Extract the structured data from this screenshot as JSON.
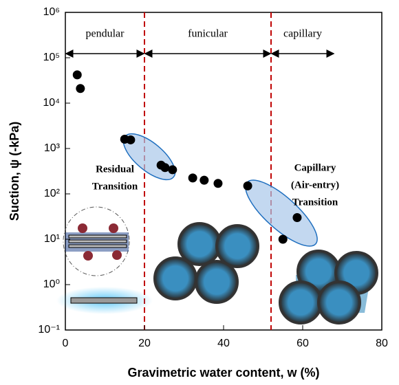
{
  "chart_data": {
    "type": "scatter",
    "xlabel": "Gravimetric water content, w (%)",
    "ylabel": "Suction, ψ (-kPa)",
    "annotations": [
      "Residual",
      "Transition",
      "Capillary",
      "(Air-entry)",
      "Transition"
    ],
    "x": [
      3,
      3.8,
      15,
      16.5,
      24.2,
      25.2,
      27.1,
      32.2,
      35.1,
      38.6,
      46.1,
      55,
      58.6
    ],
    "values": [
      42000,
      21000,
      1600,
      1550,
      430,
      380,
      340,
      224,
      200,
      170,
      150,
      10,
      30
    ],
    "color": "#000000",
    "xlim": [
      0,
      80
    ],
    "xticks": [
      0,
      20,
      40,
      60,
      80
    ],
    "ylim": [
      0.1,
      1000000
    ],
    "yscale": "log",
    "yticks": [
      {
        "value": 0.1,
        "label": "10⁻¹"
      },
      {
        "value": 1,
        "label": "10⁰"
      },
      {
        "value": 10,
        "label": "10¹"
      },
      {
        "value": 100,
        "label": "10²"
      },
      {
        "value": 1000,
        "label": "10³"
      },
      {
        "value": 10000,
        "label": "10⁴"
      },
      {
        "value": 100000,
        "label": "10⁵"
      },
      {
        "value": 1000000,
        "label": "10⁶"
      }
    ],
    "vlines": [
      20,
      52
    ],
    "vline_color": "#c00000",
    "regions": [
      {
        "label": "pendular",
        "from": 0,
        "to": 20
      },
      {
        "label": "funicular",
        "from": 20,
        "to": 52
      },
      {
        "label": "capillary",
        "from": 52,
        "to": 68
      }
    ]
  }
}
